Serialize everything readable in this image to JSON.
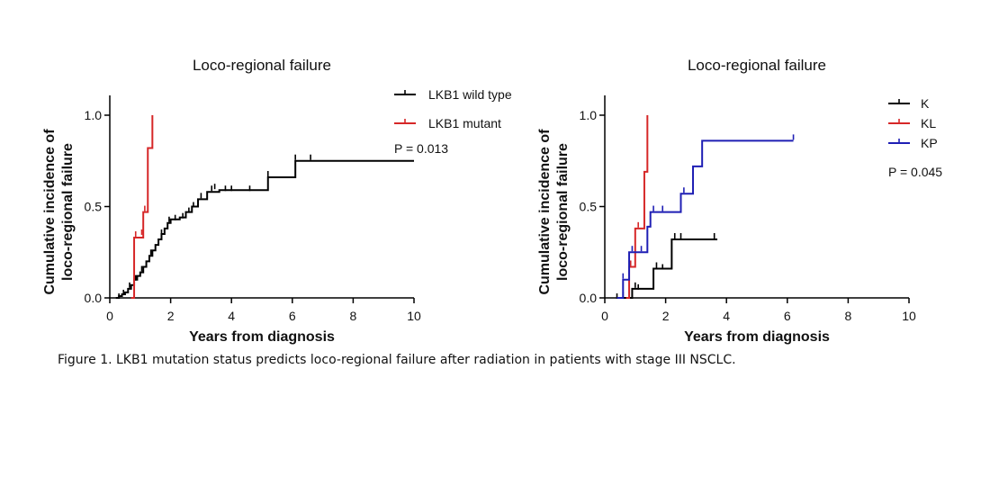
{
  "caption": "Figure 1. LKB1 mutation status predicts loco-regional failure after radiation in patients with stage III NSCLC.",
  "chart_data": [
    {
      "type": "line",
      "step": true,
      "title": "Loco-regional failure",
      "xlabel": "Years from diagnosis",
      "ylabel": [
        "Cumulative incidence of",
        "loco-regional failure"
      ],
      "xlim": [
        0,
        10
      ],
      "ylim": [
        0,
        1.0
      ],
      "xticks": [
        0,
        2,
        4,
        6,
        8,
        10
      ],
      "yticks": [
        0.0,
        0.5,
        1.0
      ],
      "ytick_labels": [
        "0.0",
        "0.5",
        "1.0"
      ],
      "grid": false,
      "legend_position": "top-right",
      "annotation": "P = 0.013",
      "series": [
        {
          "name": "LKB1 wild type",
          "color": "#000000",
          "points": [
            [
              0.2,
              0.0
            ],
            [
              0.3,
              0.01
            ],
            [
              0.4,
              0.02
            ],
            [
              0.5,
              0.03
            ],
            [
              0.6,
              0.05
            ],
            [
              0.7,
              0.07
            ],
            [
              0.8,
              0.1
            ],
            [
              0.9,
              0.12
            ],
            [
              1.0,
              0.14
            ],
            [
              1.1,
              0.17
            ],
            [
              1.2,
              0.2
            ],
            [
              1.3,
              0.23
            ],
            [
              1.4,
              0.26
            ],
            [
              1.5,
              0.29
            ],
            [
              1.6,
              0.32
            ],
            [
              1.7,
              0.35
            ],
            [
              1.8,
              0.38
            ],
            [
              1.9,
              0.41
            ],
            [
              2.0,
              0.43
            ],
            [
              2.3,
              0.44
            ],
            [
              2.5,
              0.47
            ],
            [
              2.7,
              0.5
            ],
            [
              2.9,
              0.54
            ],
            [
              3.2,
              0.58
            ],
            [
              3.6,
              0.59
            ],
            [
              5.2,
              0.66
            ],
            [
              6.1,
              0.75
            ],
            [
              10.0,
              0.75
            ]
          ],
          "censors": [
            [
              0.3,
              0.0
            ],
            [
              0.45,
              0.02
            ],
            [
              0.65,
              0.06
            ],
            [
              0.85,
              0.1
            ],
            [
              1.05,
              0.15
            ],
            [
              1.35,
              0.24
            ],
            [
              1.7,
              0.35
            ],
            [
              1.95,
              0.42
            ],
            [
              2.15,
              0.43
            ],
            [
              2.4,
              0.44
            ],
            [
              2.6,
              0.47
            ],
            [
              2.75,
              0.5
            ],
            [
              3.0,
              0.55
            ],
            [
              3.35,
              0.59
            ],
            [
              3.45,
              0.6
            ],
            [
              3.8,
              0.59
            ],
            [
              4.0,
              0.59
            ],
            [
              4.6,
              0.59
            ],
            [
              5.2,
              0.67
            ],
            [
              6.1,
              0.76
            ],
            [
              6.6,
              0.76
            ]
          ]
        },
        {
          "name": "LKB1 mutant",
          "color": "#d62728",
          "points": [
            [
              0.7,
              0.0
            ],
            [
              0.8,
              0.33
            ],
            [
              1.1,
              0.47
            ],
            [
              1.2,
              0.47
            ],
            [
              1.25,
              0.82
            ],
            [
              1.4,
              0.82
            ],
            [
              1.4,
              1.0
            ]
          ],
          "censors": [
            [
              0.85,
              0.34
            ],
            [
              1.05,
              0.35
            ],
            [
              1.15,
              0.48
            ]
          ]
        }
      ]
    },
    {
      "type": "line",
      "step": true,
      "title": "Loco-regional failure",
      "xlabel": "Years from diagnosis",
      "ylabel": [
        "Cumulative incidence of",
        "loco-regional failure"
      ],
      "xlim": [
        0,
        10
      ],
      "ylim": [
        0,
        1.0
      ],
      "xticks": [
        0,
        2,
        4,
        6,
        8,
        10
      ],
      "yticks": [
        0.0,
        0.5,
        1.0
      ],
      "ytick_labels": [
        "0.0",
        "0.5",
        "1.0"
      ],
      "grid": false,
      "legend_position": "top-right",
      "annotation": "P = 0.045",
      "series": [
        {
          "name": "K",
          "color": "#000000",
          "points": [
            [
              0.5,
              0.0
            ],
            [
              0.9,
              0.05
            ],
            [
              1.6,
              0.05
            ],
            [
              1.6,
              0.16
            ],
            [
              2.2,
              0.16
            ],
            [
              2.2,
              0.32
            ],
            [
              3.7,
              0.32
            ]
          ],
          "censors": [
            [
              0.4,
              0.0
            ],
            [
              0.6,
              0.01
            ],
            [
              1.0,
              0.06
            ],
            [
              1.1,
              0.05
            ],
            [
              1.7,
              0.17
            ],
            [
              1.9,
              0.16
            ],
            [
              2.3,
              0.33
            ],
            [
              2.5,
              0.33
            ],
            [
              3.6,
              0.33
            ]
          ]
        },
        {
          "name": "KL",
          "color": "#d62728",
          "points": [
            [
              0.7,
              0.0
            ],
            [
              0.8,
              0.17
            ],
            [
              1.0,
              0.38
            ],
            [
              1.2,
              0.38
            ],
            [
              1.3,
              0.69
            ],
            [
              1.4,
              0.69
            ],
            [
              1.4,
              1.0
            ]
          ],
          "censors": [
            [
              0.85,
              0.18
            ],
            [
              1.1,
              0.39
            ]
          ]
        },
        {
          "name": "KP",
          "color": "#1f1fb4",
          "points": [
            [
              0.4,
              0.0
            ],
            [
              0.6,
              0.1
            ],
            [
              0.8,
              0.25
            ],
            [
              1.3,
              0.25
            ],
            [
              1.4,
              0.39
            ],
            [
              1.5,
              0.47
            ],
            [
              2.5,
              0.47
            ],
            [
              2.5,
              0.57
            ],
            [
              2.9,
              0.57
            ],
            [
              2.9,
              0.72
            ],
            [
              3.2,
              0.72
            ],
            [
              3.2,
              0.86
            ],
            [
              6.2,
              0.86
            ]
          ],
          "censors": [
            [
              0.6,
              0.11
            ],
            [
              0.9,
              0.26
            ],
            [
              1.2,
              0.26
            ],
            [
              1.6,
              0.48
            ],
            [
              1.9,
              0.48
            ],
            [
              2.6,
              0.58
            ],
            [
              6.2,
              0.87
            ]
          ]
        }
      ]
    }
  ]
}
